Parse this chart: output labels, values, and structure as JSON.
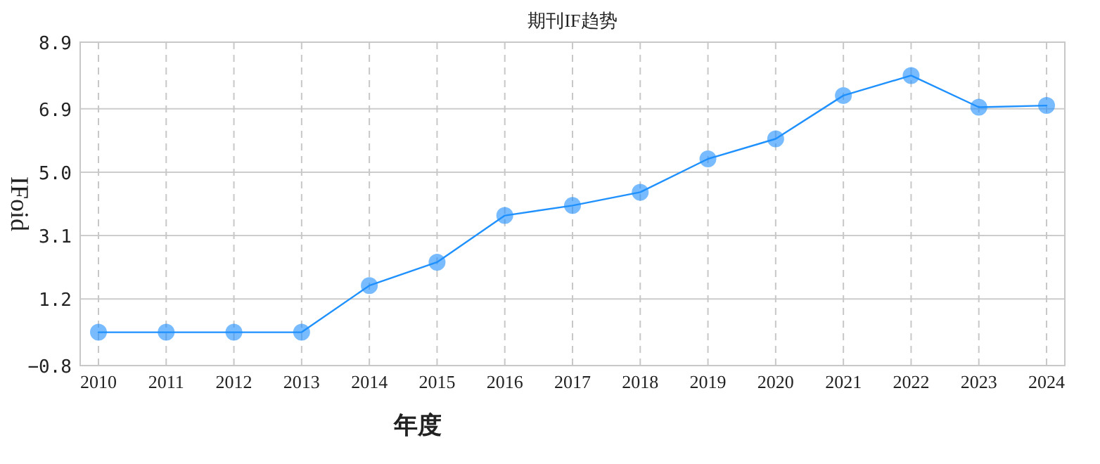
{
  "chart_data": {
    "type": "line",
    "title": "期刊IF趋势",
    "xlabel": "年度",
    "ylabel": "IFoid",
    "categories": [
      "2010",
      "2011",
      "2012",
      "2013",
      "2014",
      "2015",
      "2016",
      "2017",
      "2018",
      "2019",
      "2020",
      "2021",
      "2022",
      "2023",
      "2024"
    ],
    "series": [
      {
        "color": "#1e90ff",
        "values": [
          0.2,
          0.2,
          0.2,
          0.2,
          1.6,
          2.3,
          3.7,
          4.0,
          4.4,
          5.4,
          6.0,
          7.3,
          7.9,
          6.95,
          7.0
        ]
      }
    ],
    "ylim": [
      -0.8,
      8.9
    ],
    "yticks": [
      -0.8,
      1.2,
      3.1,
      {
        "value": 5.0,
        "label": "5.0"
      },
      6.9,
      8.9
    ],
    "grid": true,
    "marker": "circle",
    "line_style": "solid"
  }
}
